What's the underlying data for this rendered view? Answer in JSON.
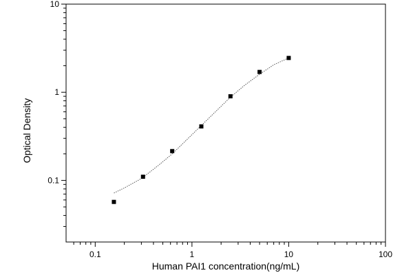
{
  "chart_data": {
    "type": "scatter",
    "title": "",
    "xlabel": "Human PAI1 concentration(ng/mL)",
    "ylabel": "Optical Density",
    "x_scale": "log",
    "y_scale": "log",
    "xlim": [
      0.05,
      100
    ],
    "ylim": [
      0.02,
      10
    ],
    "x_ticks": [
      {
        "value": 0.1,
        "label": "0.1"
      },
      {
        "value": 1,
        "label": "1"
      },
      {
        "value": 10,
        "label": "10"
      },
      {
        "value": 100,
        "label": "100"
      }
    ],
    "y_ticks": [
      {
        "value": 0.1,
        "label": "0.1"
      },
      {
        "value": 1,
        "label": "1"
      },
      {
        "value": 10,
        "label": "10"
      }
    ],
    "grid": false,
    "legend": "none",
    "series": [
      {
        "marker": "square",
        "color": "#000000",
        "points": [
          {
            "x": 0.156,
            "y": 0.057
          },
          {
            "x": 0.312,
            "y": 0.11
          },
          {
            "x": 0.625,
            "y": 0.215
          },
          {
            "x": 1.25,
            "y": 0.41
          },
          {
            "x": 2.5,
            "y": 0.9
          },
          {
            "x": 5,
            "y": 1.7
          },
          {
            "x": 10,
            "y": 2.45
          }
        ]
      }
    ],
    "fit_curve": {
      "style": "dotted",
      "color": "#555555",
      "points": [
        {
          "x": 0.156,
          "y": 0.072
        },
        {
          "x": 0.2,
          "y": 0.082
        },
        {
          "x": 0.3,
          "y": 0.105
        },
        {
          "x": 0.45,
          "y": 0.148
        },
        {
          "x": 0.625,
          "y": 0.2
        },
        {
          "x": 0.9,
          "y": 0.295
        },
        {
          "x": 1.25,
          "y": 0.42
        },
        {
          "x": 1.8,
          "y": 0.62
        },
        {
          "x": 2.5,
          "y": 0.88
        },
        {
          "x": 3.5,
          "y": 1.2
        },
        {
          "x": 5,
          "y": 1.6
        },
        {
          "x": 7,
          "y": 2.05
        },
        {
          "x": 10,
          "y": 2.45
        }
      ]
    }
  }
}
